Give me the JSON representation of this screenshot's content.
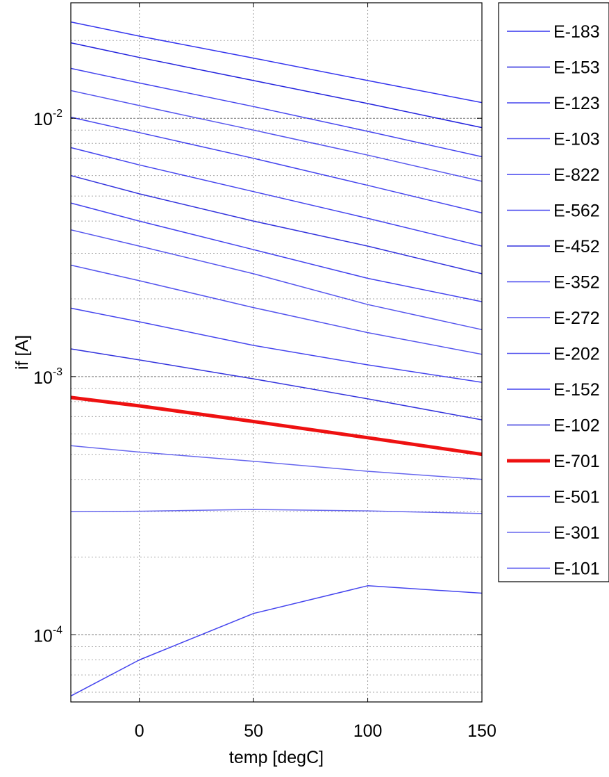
{
  "chart_data": {
    "type": "line",
    "title": "",
    "xlabel": "temp [degC]",
    "ylabel": "if [A]",
    "xlim": [
      -30,
      150
    ],
    "ylim": [
      5.5e-05,
      0.028
    ],
    "yscale": "log",
    "grid": true,
    "legend_position": "outside-right",
    "x_ticks": [
      0,
      50,
      100,
      150
    ],
    "y_ticks": [
      {
        "value": 0.0001,
        "base": "10",
        "exponent": "-4"
      },
      {
        "value": 0.001,
        "base": "10",
        "exponent": "-3"
      },
      {
        "value": 0.01,
        "base": "10",
        "exponent": "-2"
      }
    ],
    "x": [
      -30,
      0,
      50,
      100,
      150
    ],
    "series": [
      {
        "name": "E-183",
        "color": "#3333ee",
        "width": 1.5,
        "values": [
          0.0236,
          0.0208,
          0.0171,
          0.014,
          0.0115
        ]
      },
      {
        "name": "E-153",
        "color": "#2222dd",
        "width": 1.5,
        "values": [
          0.0196,
          0.0172,
          0.014,
          0.0114,
          0.0092
        ]
      },
      {
        "name": "E-123",
        "color": "#4444ee",
        "width": 1.5,
        "values": [
          0.0156,
          0.0137,
          0.0111,
          0.0089,
          0.0071
        ]
      },
      {
        "name": "E-103",
        "color": "#5555ee",
        "width": 1.5,
        "values": [
          0.0128,
          0.0112,
          0.009,
          0.0072,
          0.0057
        ]
      },
      {
        "name": "E-822",
        "color": "#4444ee",
        "width": 1.5,
        "values": [
          0.0101,
          0.0088,
          0.007,
          0.0055,
          0.0043
        ]
      },
      {
        "name": "E-562",
        "color": "#4444ee",
        "width": 1.5,
        "values": [
          0.0077,
          0.0066,
          0.0052,
          0.0041,
          0.0032
        ]
      },
      {
        "name": "E-452",
        "color": "#3333dd",
        "width": 1.5,
        "values": [
          0.006,
          0.0051,
          0.004,
          0.0032,
          0.0025
        ]
      },
      {
        "name": "E-352",
        "color": "#4444ee",
        "width": 1.5,
        "values": [
          0.0047,
          0.004,
          0.0031,
          0.0024,
          0.00195
        ]
      },
      {
        "name": "E-272",
        "color": "#5555ee",
        "width": 1.5,
        "values": [
          0.0037,
          0.0032,
          0.0025,
          0.0019,
          0.00152
        ]
      },
      {
        "name": "E-202",
        "color": "#5555ee",
        "width": 1.5,
        "values": [
          0.0027,
          0.00235,
          0.00185,
          0.00148,
          0.00122
        ]
      },
      {
        "name": "E-152",
        "color": "#4444ee",
        "width": 1.5,
        "values": [
          0.00184,
          0.00163,
          0.00132,
          0.00111,
          0.00095
        ]
      },
      {
        "name": "E-102",
        "color": "#3333dd",
        "width": 1.5,
        "values": [
          0.00128,
          0.00116,
          0.00098,
          0.00082,
          0.00068
        ]
      },
      {
        "name": "E-701",
        "color": "#ee1111",
        "width": 5,
        "values": [
          0.00083,
          0.00077,
          0.00067,
          0.00058,
          0.0005
        ]
      },
      {
        "name": "E-501",
        "color": "#6666ee",
        "width": 1.5,
        "values": [
          0.00054,
          0.00051,
          0.00047,
          0.00043,
          0.0004
        ]
      },
      {
        "name": "E-301",
        "color": "#6666ee",
        "width": 1.5,
        "values": [
          0.0003,
          0.000301,
          0.000306,
          0.000302,
          0.000295
        ]
      },
      {
        "name": "E-101",
        "color": "#4444ee",
        "width": 1.5,
        "values": [
          5.8e-05,
          8e-05,
          0.000121,
          0.000155,
          0.000145
        ]
      }
    ]
  }
}
